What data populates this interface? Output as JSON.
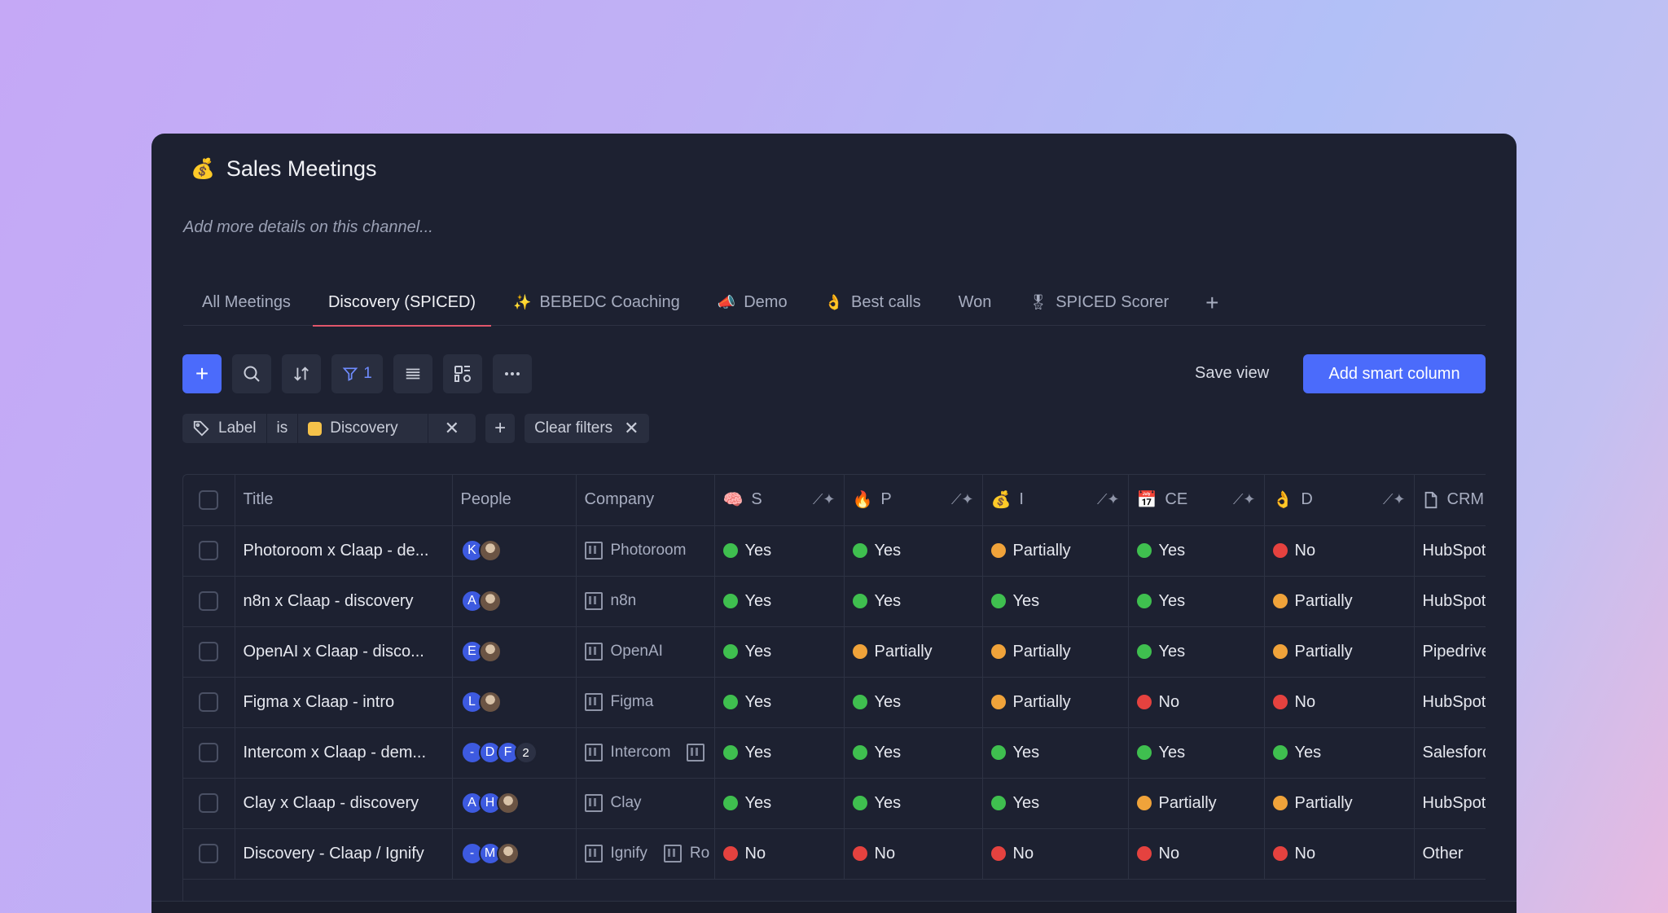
{
  "channel": {
    "emoji": "💰",
    "title": "Sales Meetings",
    "description": "Add more details on this channel..."
  },
  "tabs": [
    {
      "label": "All Meetings",
      "icon": ""
    },
    {
      "label": "Discovery (SPICED)",
      "icon": "",
      "active": true
    },
    {
      "label": "BEBEDC Coaching",
      "icon": "✨"
    },
    {
      "label": "Demo",
      "icon": "📣"
    },
    {
      "label": "Best calls",
      "icon": "👌"
    },
    {
      "label": "Won",
      "icon": ""
    },
    {
      "label": "SPICED Scorer",
      "icon": "🎖"
    }
  ],
  "toolbar": {
    "filter_count": "1",
    "save_view": "Save view",
    "add_smart_column": "Add smart column"
  },
  "filter": {
    "field": "Label",
    "operator": "is",
    "value": "Discovery",
    "clear": "Clear filters"
  },
  "columns": {
    "title": "Title",
    "people": "People",
    "company": "Company",
    "s": {
      "emoji": "🧠",
      "label": "S"
    },
    "p": {
      "emoji": "🔥",
      "label": "P"
    },
    "i": {
      "emoji": "💰",
      "label": "I"
    },
    "ce": {
      "emoji": "📅",
      "label": "CE"
    },
    "d": {
      "emoji": "👌",
      "label": "D"
    },
    "crm": "CRM"
  },
  "rows": [
    {
      "title": "Photoroom x Claap - de...",
      "people": [
        "K",
        "photo"
      ],
      "company": "Photoroom",
      "s": "Yes",
      "p": "Yes",
      "i": "Partially",
      "ce": "Yes",
      "d": "No",
      "crm": "HubSpot"
    },
    {
      "title": "n8n x Claap - discovery",
      "people": [
        "A",
        "photo"
      ],
      "company": "n8n",
      "s": "Yes",
      "p": "Yes",
      "i": "Yes",
      "ce": "Yes",
      "d": "Partially",
      "crm": "HubSpot"
    },
    {
      "title": "OpenAI x Claap - disco...",
      "people": [
        "E",
        "photo"
      ],
      "company": "OpenAI",
      "s": "Yes",
      "p": "Partially",
      "i": "Partially",
      "ce": "Yes",
      "d": "Partially",
      "crm": "Pipedrive"
    },
    {
      "title": "Figma x Claap - intro",
      "people": [
        "L",
        "photo"
      ],
      "company": "Figma",
      "s": "Yes",
      "p": "Yes",
      "i": "Partially",
      "ce": "No",
      "d": "No",
      "crm": "HubSpot"
    },
    {
      "title": "Intercom x Claap - dem...",
      "people": [
        "-",
        "D",
        "F",
        "2"
      ],
      "company": "Intercom",
      "company2": "",
      "s": "Yes",
      "p": "Yes",
      "i": "Yes",
      "ce": "Yes",
      "d": "Yes",
      "crm": "Salesforce"
    },
    {
      "title": "Clay x Claap - discovery",
      "people": [
        "A",
        "H",
        "photo"
      ],
      "company": "Clay",
      "s": "Yes",
      "p": "Yes",
      "i": "Yes",
      "ce": "Partially",
      "d": "Partially",
      "crm": "HubSpot"
    },
    {
      "title": "Discovery - Claap / Ignify",
      "people": [
        "-",
        "M",
        "photo"
      ],
      "company": "Ignify",
      "company2": "Ro",
      "s": "No",
      "p": "No",
      "i": "No",
      "ce": "No",
      "d": "No",
      "crm": "Other"
    }
  ],
  "status_colors": {
    "Yes": "#3fbf4f",
    "Partially": "#f0a33a",
    "No": "#e5423f"
  }
}
